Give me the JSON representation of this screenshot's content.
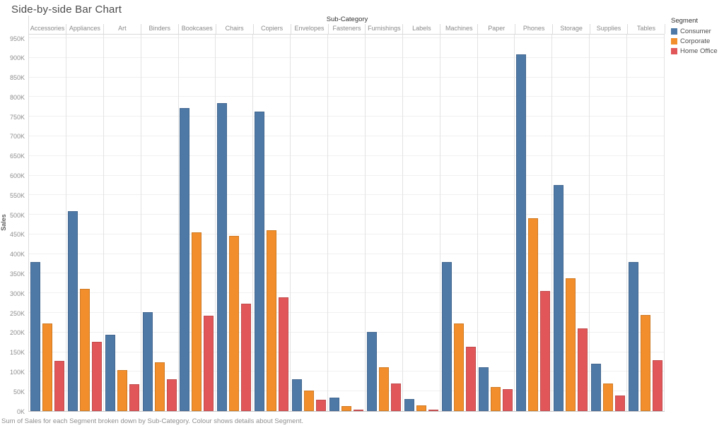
{
  "title": "Side-by-side Bar Chart",
  "caption": "Sum of Sales for each Segment broken down by Sub-Category. Colour shows details about Segment.",
  "x_axis": {
    "title": "Sub-Category"
  },
  "y_axis": {
    "title": "Sales",
    "min": 0,
    "max": 950,
    "tick_step": 50,
    "unit": "K",
    "ticks": [
      "0K",
      "50K",
      "100K",
      "150K",
      "200K",
      "250K",
      "300K",
      "350K",
      "400K",
      "450K",
      "500K",
      "550K",
      "600K",
      "650K",
      "700K",
      "750K",
      "800K",
      "850K",
      "900K",
      "950K"
    ]
  },
  "legend": {
    "title": "Segment",
    "items": [
      {
        "label": "Consumer",
        "color": "#4e79a7"
      },
      {
        "label": "Corporate",
        "color": "#f28e2b"
      },
      {
        "label": "Home Office",
        "color": "#e15759"
      }
    ]
  },
  "chart_data": {
    "type": "bar",
    "title": "Side-by-side Bar Chart",
    "xlabel": "Sub-Category",
    "ylabel": "Sales",
    "values_unit": "thousands (K)",
    "ylim": [
      0,
      950
    ],
    "grid": true,
    "legend_position": "top-right",
    "categories": [
      "Accessories",
      "Appliances",
      "Art",
      "Binders",
      "Bookcases",
      "Chairs",
      "Copiers",
      "Envelopes",
      "Fasteners",
      "Furnishings",
      "Labels",
      "Machines",
      "Paper",
      "Phones",
      "Storage",
      "Supplies",
      "Tables"
    ],
    "series": [
      {
        "name": "Consumer",
        "color": "#4e79a7",
        "values": [
          380,
          509,
          195,
          251,
          772,
          785,
          763,
          81,
          34,
          201,
          30,
          379,
          112,
          908,
          575,
          120,
          379
        ]
      },
      {
        "name": "Corporate",
        "color": "#f28e2b",
        "values": [
          224,
          312,
          104,
          124,
          455,
          446,
          461,
          52,
          13,
          111,
          14,
          224,
          61,
          491,
          339,
          71,
          244
        ]
      },
      {
        "name": "Home Office",
        "color": "#e15759",
        "values": [
          127,
          177,
          68,
          81,
          242,
          274,
          290,
          29,
          4,
          70,
          4,
          163,
          56,
          306,
          210,
          39,
          129
        ]
      }
    ]
  }
}
